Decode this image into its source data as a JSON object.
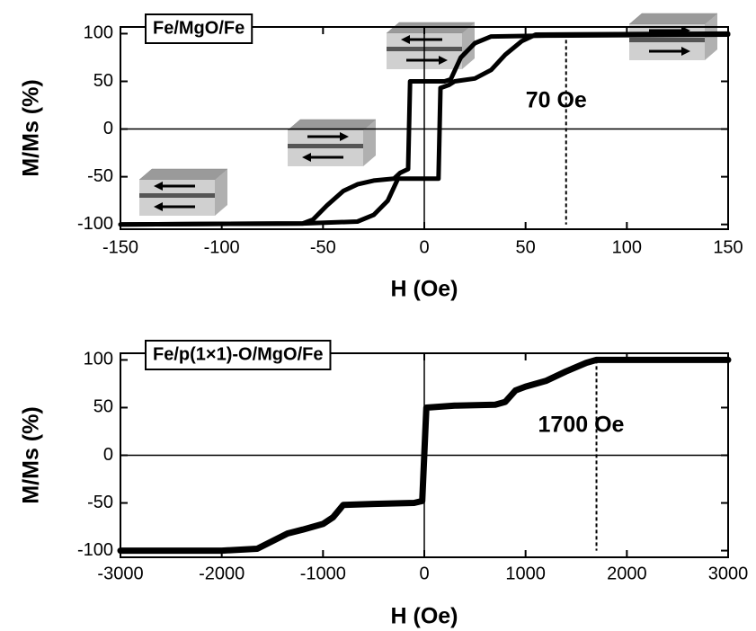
{
  "chart_data": [
    {
      "type": "line",
      "title": "Fe/MgO/Fe",
      "xlabel": "H (Oe)",
      "ylabel": "M/Ms (%)",
      "xlim": [
        -150,
        150
      ],
      "xticks": [
        -150,
        -100,
        -50,
        0,
        50,
        100,
        150
      ],
      "ylim": [
        -105,
        107
      ],
      "yticks": [
        -100,
        -50,
        0,
        50,
        100
      ],
      "annotations": [
        {
          "text": "70 Oe",
          "x": 70
        }
      ],
      "series": [
        {
          "color": "#000000",
          "x": [
            -150,
            -60,
            -55,
            -48,
            -40,
            -33,
            -25,
            -15,
            -12,
            -8,
            -7,
            0,
            10,
            13,
            18,
            25,
            33,
            60,
            150
          ],
          "values": [
            -100,
            -99,
            -95,
            -80,
            -65,
            -58,
            -54,
            -52,
            -46,
            -42,
            50,
            50,
            50,
            52,
            75,
            90,
            97,
            98,
            99
          ]
        },
        {
          "color": "#000000",
          "x": [
            150,
            55,
            48,
            40,
            33,
            25,
            15,
            12,
            8,
            7,
            0,
            -13,
            -18,
            -25,
            -33,
            -60,
            -150
          ],
          "values": [
            100,
            99,
            92,
            78,
            62,
            53,
            50,
            46,
            43,
            -52,
            -52,
            -52,
            -75,
            -90,
            -97,
            -99,
            -100
          ]
        }
      ]
    },
    {
      "type": "line",
      "title": "Fe/p(1×1)-O/MgO/Fe",
      "xlabel": "H (Oe)",
      "ylabel": "M/Ms (%)",
      "xlim": [
        -3000,
        3000
      ],
      "xticks": [
        -3000,
        -2000,
        -1000,
        0,
        1000,
        2000,
        3000
      ],
      "ylim": [
        -107,
        107
      ],
      "yticks": [
        -100,
        -50,
        0,
        50,
        100
      ],
      "annotations": [
        {
          "text": "1700 Oe",
          "x": 1700
        }
      ],
      "series": [
        {
          "color": "#000000",
          "x": [
            -3000,
            -2000,
            -1650,
            -1500,
            -1350,
            -1200,
            -1000,
            -900,
            -800,
            -500,
            -100,
            -20,
            20,
            300,
            700,
            800,
            900,
            1000,
            1200,
            1400,
            1600,
            1700,
            3000
          ],
          "values": [
            -100,
            -100,
            -98,
            -90,
            -82,
            -78,
            -72,
            -65,
            -52,
            -51,
            -50,
            -48,
            50,
            52,
            53,
            56,
            68,
            72,
            78,
            88,
            97,
            100,
            100
          ]
        }
      ]
    }
  ]
}
